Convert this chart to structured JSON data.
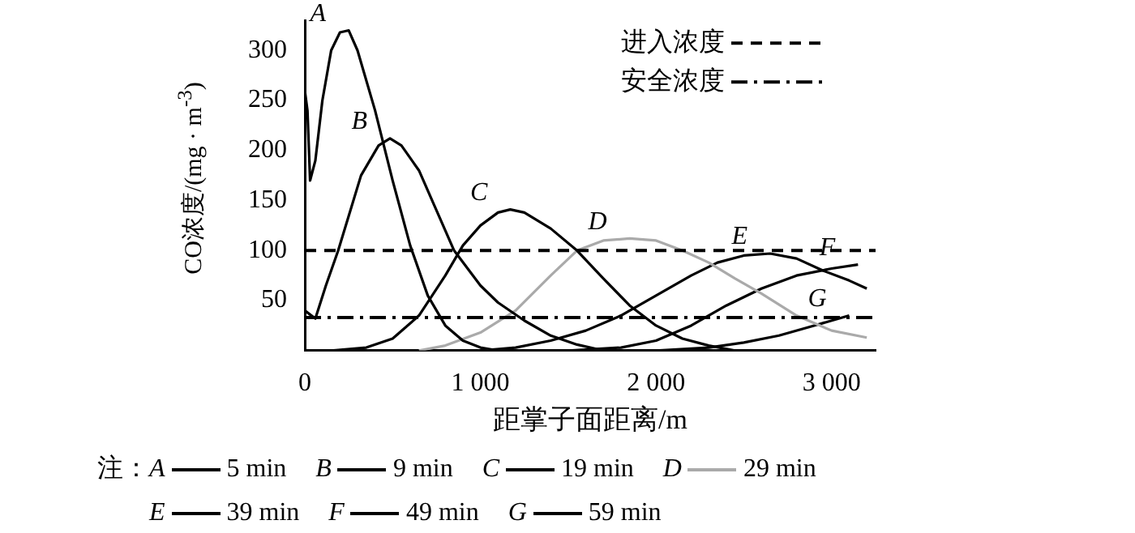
{
  "chart_data": {
    "type": "line",
    "xlabel": "距掌子面距离/m",
    "ylabel": "CO浓度/(mg · m$^{-3}$)",
    "xlim": [
      0,
      3250
    ],
    "ylim": [
      0,
      330
    ],
    "xticks": [
      0,
      {
        "value": 1000,
        "label": "1 000"
      },
      {
        "value": 2000,
        "label": "2 000"
      },
      {
        "value": 3000,
        "label": "3 000"
      }
    ],
    "yticks": [
      50,
      100,
      150,
      200,
      250,
      300
    ],
    "grid": false,
    "legend": "bottom",
    "marker": "none",
    "line_style": "solid",
    "annotations": [
      "注：",
      "5 min",
      "9 min",
      "19 min",
      "29 min",
      "39 min",
      "49 min",
      "59 min"
    ],
    "ref_lines": [
      {
        "axis": "y",
        "value": 100,
        "label": "进入浓度",
        "line_style": "dashed",
        "color": "#000000"
      },
      {
        "axis": "y",
        "value": 33,
        "label": "安全浓度",
        "line_style": "dashdot",
        "color": "#000000"
      }
    ],
    "series": [
      {
        "name": "A",
        "color": "#000000",
        "x": [
          0,
          15,
          30,
          60,
          100,
          150,
          200,
          250,
          300,
          400,
          500,
          600,
          700,
          800,
          900,
          1000,
          1100
        ],
        "values": [
          260,
          240,
          170,
          190,
          250,
          300,
          318,
          320,
          300,
          240,
          170,
          105,
          55,
          25,
          10,
          3,
          0
        ]
      },
      {
        "name": "B",
        "color": "#000000",
        "x": [
          0,
          60,
          120,
          190,
          320,
          420,
          485,
          550,
          650,
          750,
          850,
          1000,
          1100,
          1250,
          1400,
          1550,
          1700
        ],
        "values": [
          40,
          32,
          65,
          100,
          175,
          205,
          212,
          205,
          180,
          140,
          100,
          65,
          48,
          30,
          15,
          6,
          0
        ]
      },
      {
        "name": "C",
        "color": "#000000",
        "x": [
          150,
          350,
          500,
          650,
          800,
          900,
          1000,
          1100,
          1170,
          1250,
          1400,
          1550,
          1700,
          1850,
          2000,
          2150,
          2300,
          2450
        ],
        "values": [
          0,
          3,
          12,
          35,
          75,
          105,
          125,
          138,
          141,
          138,
          122,
          100,
          72,
          45,
          25,
          12,
          5,
          0
        ]
      },
      {
        "name": "D",
        "color": "#aaaaaa",
        "x": [
          650,
          800,
          1000,
          1200,
          1400,
          1550,
          1700,
          1850,
          2000,
          2150,
          2300,
          2450,
          2600,
          2800,
          3000,
          3200
        ],
        "values": [
          0,
          5,
          18,
          40,
          75,
          100,
          110,
          112,
          110,
          100,
          88,
          72,
          57,
          35,
          20,
          13
        ]
      },
      {
        "name": "E",
        "color": "#000000",
        "x": [
          1000,
          1200,
          1400,
          1600,
          1800,
          2000,
          2200,
          2350,
          2500,
          2650,
          2800,
          2950,
          3100,
          3200
        ],
        "values": [
          0,
          3,
          10,
          20,
          35,
          55,
          75,
          88,
          95,
          97,
          92,
          80,
          70,
          62
        ]
      },
      {
        "name": "F",
        "color": "#000000",
        "x": [
          1500,
          1800,
          2000,
          2200,
          2400,
          2600,
          2800,
          3000,
          3150
        ],
        "values": [
          0,
          3,
          10,
          25,
          45,
          62,
          75,
          82,
          86
        ]
      },
      {
        "name": "G",
        "color": "#000000",
        "x": [
          2000,
          2300,
          2500,
          2700,
          2900,
          3100
        ],
        "values": [
          0,
          3,
          8,
          15,
          25,
          35
        ]
      }
    ]
  }
}
